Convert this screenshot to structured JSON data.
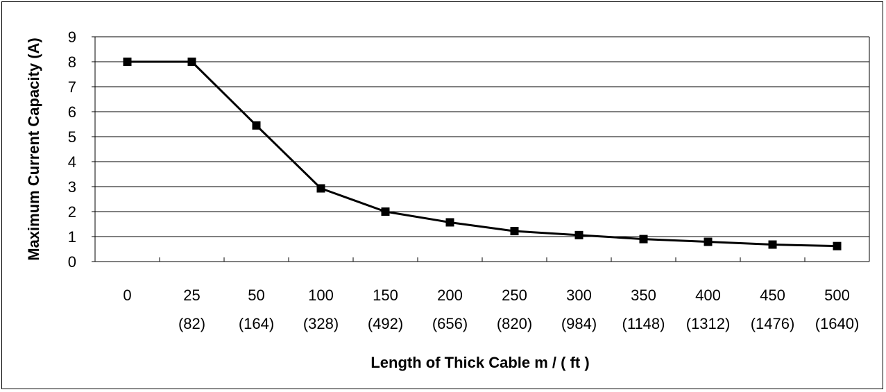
{
  "chart_data": {
    "type": "line",
    "title": "",
    "xlabel": "Length of Thick Cable m / ( ft )",
    "ylabel": "Maximum Current Capacity (A)",
    "ylim": [
      0,
      9
    ],
    "yticks": [
      0,
      1,
      2,
      3,
      4,
      5,
      6,
      7,
      8,
      9
    ],
    "grid": "horizontal",
    "legend": "none",
    "categories": [
      "0",
      "25",
      "50",
      "100",
      "150",
      "200",
      "250",
      "300",
      "350",
      "400",
      "450",
      "500"
    ],
    "category_sublabels": [
      "",
      "(82)",
      "(164)",
      "(328)",
      "(492)",
      "(656)",
      "(820)",
      "(984)",
      "(1148)",
      "(1312)",
      "(1476)",
      "(1640)"
    ],
    "series": [
      {
        "values": [
          8.0,
          8.0,
          5.45,
          2.93,
          2.0,
          1.57,
          1.22,
          1.06,
          0.9,
          0.79,
          0.68,
          0.62
        ]
      }
    ],
    "colors": {
      "line": "#000000",
      "marker": "#000000",
      "grid": "#000000"
    }
  }
}
